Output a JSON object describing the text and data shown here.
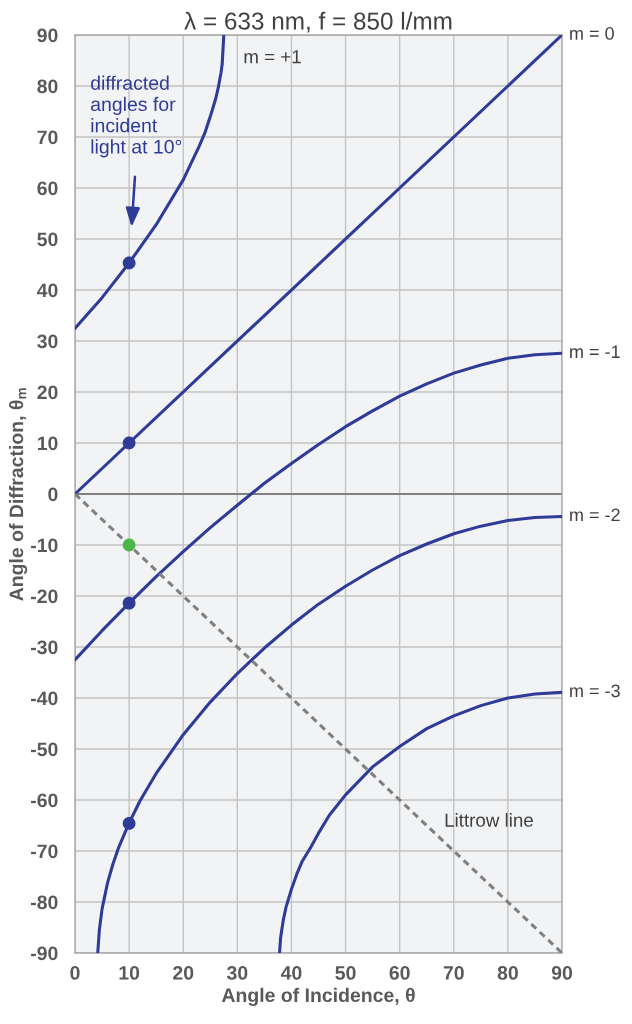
{
  "chart_data": {
    "type": "line",
    "title": "λ = 633 nm, f = 850 l/mm",
    "xlabel": "Angle of Incidence, θ",
    "ylabel": "Angle of Diffraction, θ$_{m}$",
    "xlim": [
      0,
      90
    ],
    "ylim": [
      -90,
      90
    ],
    "xticks": [
      0,
      10,
      20,
      30,
      40,
      50,
      60,
      70,
      80,
      90
    ],
    "yticks": [
      -90,
      -80,
      -70,
      -60,
      -50,
      -40,
      -30,
      -20,
      -10,
      0,
      10,
      20,
      30,
      40,
      50,
      60,
      70,
      80,
      90
    ],
    "grid": true,
    "series": [
      {
        "name": "m = 0",
        "color": "#2e3b97",
        "x": [
          0,
          90
        ],
        "values": [
          0,
          90
        ]
      },
      {
        "name": "m = -1",
        "color": "#2e3b97",
        "x": [
          0,
          5,
          10,
          15,
          20,
          25,
          30,
          35,
          40,
          45,
          50,
          55,
          60,
          65,
          70,
          75,
          80,
          85,
          90
        ],
        "values": [
          -32.5,
          -26.8,
          -21.4,
          -16.2,
          -11.3,
          -6.6,
          -2.2,
          2.1,
          6,
          9.7,
          13.2,
          16.3,
          19.2,
          21.6,
          23.7,
          25.3,
          26.6,
          27.3,
          27.6
        ]
      },
      {
        "name": "m = -2",
        "color": "#2e3b97",
        "x": [
          4.2,
          4.5,
          5,
          6,
          7,
          8,
          10,
          12,
          15,
          20,
          25,
          30,
          35,
          40,
          45,
          50,
          55,
          60,
          65,
          70,
          75,
          80,
          85,
          90
        ],
        "values": [
          -90,
          -85.5,
          -81.4,
          -76.3,
          -72.6,
          -69.5,
          -64.5,
          -60.2,
          -54.8,
          -47.2,
          -40.8,
          -35.2,
          -30.2,
          -25.7,
          -21.6,
          -18.1,
          -14.9,
          -12.1,
          -9.8,
          -7.8,
          -6.3,
          -5.2,
          -4.6,
          -4.4
        ]
      },
      {
        "name": "m = -3",
        "color": "#2e3b97",
        "x": [
          37.8,
          38,
          38.5,
          39,
          40,
          41,
          42,
          43.6,
          45,
          47,
          50,
          55,
          60,
          65,
          70,
          75,
          80,
          85,
          90
        ],
        "values": [
          -90,
          -87,
          -83.5,
          -81,
          -77.5,
          -74.5,
          -72,
          -69.2,
          -66.5,
          -63,
          -59,
          -53.5,
          -49.5,
          -46,
          -43.5,
          -41.5,
          -40,
          -39.2,
          -38.9
        ]
      },
      {
        "color": "#2e3b97",
        "x": [
          0,
          5,
          10,
          15,
          20,
          23,
          24,
          25,
          26,
          26.5,
          27,
          27.2,
          27.5
        ],
        "values": [
          32.5,
          38.5,
          45.3,
          52.8,
          61.6,
          68.3,
          70.8,
          74,
          77.5,
          79.8,
          82.7,
          84.3,
          90
        ]
      },
      {
        "color": "#808080",
        "line_style": "dashed",
        "x": [
          0,
          90
        ],
        "values": [
          0,
          -90
        ]
      },
      {
        "type": "scatter",
        "color": "#2e3b97",
        "marker": "circle",
        "x": [
          10,
          10,
          10,
          10
        ],
        "values": [
          45.3,
          10,
          -21.4,
          -64.6
        ]
      },
      {
        "type": "scatter",
        "color": "#4cb748",
        "marker": "circle",
        "x": [
          10
        ],
        "values": [
          -10
        ]
      }
    ],
    "ref_lines": [
      {
        "axis": "y",
        "value": 0,
        "color": "#808080"
      }
    ],
    "annotations": [
      "diffracted\nangles for\nincident\nlight at 10°",
      {
        "text": "m = +1",
        "x": 27,
        "y": 82.7
      },
      {
        "text": "Littrow line",
        "x": 67,
        "y": -67
      }
    ]
  }
}
